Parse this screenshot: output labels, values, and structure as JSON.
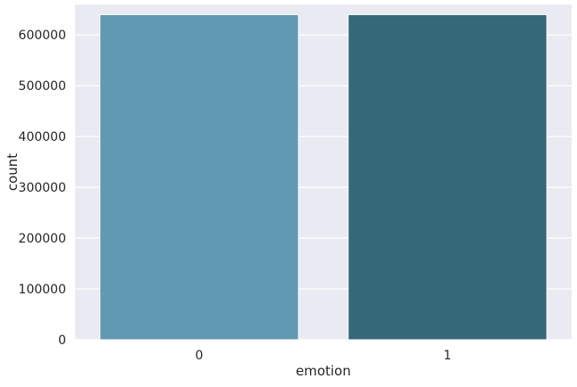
{
  "chart_data": {
    "type": "bar",
    "title": "",
    "xlabel": "emotion",
    "ylabel": "count",
    "categories": [
      "0",
      "1"
    ],
    "values": [
      640000,
      640000
    ],
    "ylim": [
      0,
      660000
    ],
    "yticks": [
      0,
      100000,
      200000,
      300000,
      400000,
      500000,
      600000
    ],
    "ytick_labels": [
      "0",
      "100000",
      "200000",
      "300000",
      "400000",
      "500000",
      "600000"
    ],
    "grid": true,
    "legend": "none",
    "colors": {
      "background": "#eaeaf2",
      "grid": "#ffffff",
      "bars": [
        "#6199b2",
        "#356878"
      ],
      "text": "#262626"
    }
  }
}
